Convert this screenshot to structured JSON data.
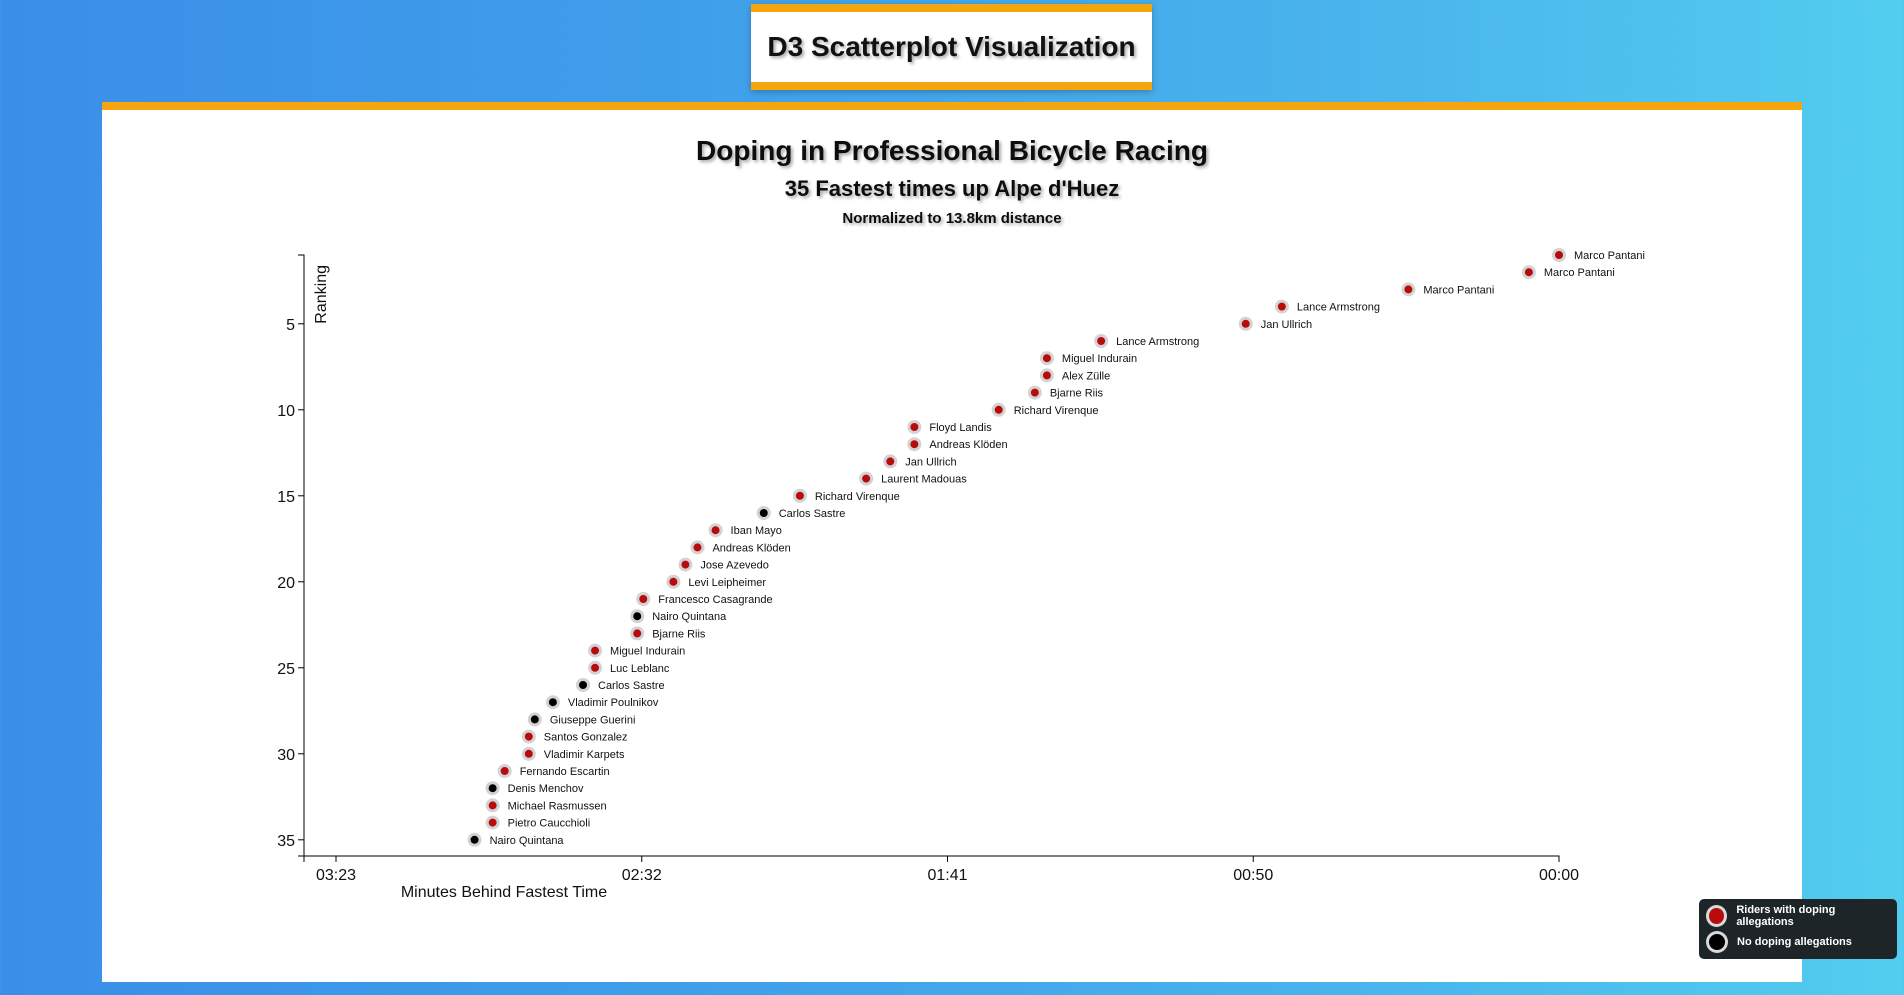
{
  "page": {
    "heading": "D3 Scatterplot Visualization"
  },
  "colors": {
    "doping": "#b80c0c",
    "clean": "#000000",
    "accent": "#f5a50e",
    "dot_ring": "#d3d3d3"
  },
  "chart_data": {
    "type": "scatter",
    "title": "Doping in Professional Bicycle Racing",
    "subtitle": "35 Fastest times up Alpe d'Huez",
    "subsubtitle": "Normalized to 13.8km distance",
    "xlabel": "Minutes Behind Fastest Time",
    "ylabel": "Ranking",
    "xlim_seconds_behind": [
      203,
      0
    ],
    "ylim": [
      1,
      36
    ],
    "x_ticks": [
      "03:23",
      "02:32",
      "01:41",
      "00:50",
      "00:00"
    ],
    "y_ticks": [
      5,
      10,
      15,
      20,
      25,
      30,
      35
    ],
    "legend": [
      {
        "label": "Riders with doping allegations",
        "color": "#b80c0c"
      },
      {
        "label": "No doping allegations",
        "color": "#000000"
      }
    ],
    "points": [
      {
        "rank": 1,
        "seconds_behind": 0,
        "name": "Marco Pantani",
        "doping": true
      },
      {
        "rank": 2,
        "seconds_behind": 5,
        "name": "Marco Pantani",
        "doping": true
      },
      {
        "rank": 3,
        "seconds_behind": 25,
        "name": "Marco Pantani",
        "doping": true
      },
      {
        "rank": 4,
        "seconds_behind": 46,
        "name": "Lance Armstrong",
        "doping": true
      },
      {
        "rank": 5,
        "seconds_behind": 52,
        "name": "Jan Ullrich",
        "doping": true
      },
      {
        "rank": 6,
        "seconds_behind": 76,
        "name": "Lance Armstrong",
        "doping": true
      },
      {
        "rank": 7,
        "seconds_behind": 85,
        "name": "Miguel Indurain",
        "doping": true
      },
      {
        "rank": 8,
        "seconds_behind": 85,
        "name": "Alex Zülle",
        "doping": true
      },
      {
        "rank": 9,
        "seconds_behind": 87,
        "name": "Bjarne Riis",
        "doping": true
      },
      {
        "rank": 10,
        "seconds_behind": 93,
        "name": "Richard Virenque",
        "doping": true
      },
      {
        "rank": 11,
        "seconds_behind": 107,
        "name": "Floyd Landis",
        "doping": true
      },
      {
        "rank": 12,
        "seconds_behind": 107,
        "name": "Andreas Klöden",
        "doping": true
      },
      {
        "rank": 13,
        "seconds_behind": 111,
        "name": "Jan Ullrich",
        "doping": true
      },
      {
        "rank": 14,
        "seconds_behind": 115,
        "name": "Laurent Madouas",
        "doping": true
      },
      {
        "rank": 15,
        "seconds_behind": 126,
        "name": "Richard Virenque",
        "doping": true
      },
      {
        "rank": 16,
        "seconds_behind": 132,
        "name": "Carlos Sastre",
        "doping": false
      },
      {
        "rank": 17,
        "seconds_behind": 140,
        "name": "Iban Mayo",
        "doping": true
      },
      {
        "rank": 18,
        "seconds_behind": 143,
        "name": "Andreas Klöden",
        "doping": true
      },
      {
        "rank": 19,
        "seconds_behind": 145,
        "name": "Jose Azevedo",
        "doping": true
      },
      {
        "rank": 20,
        "seconds_behind": 147,
        "name": "Levi Leipheimer",
        "doping": true
      },
      {
        "rank": 21,
        "seconds_behind": 152,
        "name": "Francesco Casagrande",
        "doping": true
      },
      {
        "rank": 22,
        "seconds_behind": 153,
        "name": "Nairo Quintana",
        "doping": false
      },
      {
        "rank": 23,
        "seconds_behind": 153,
        "name": "Bjarne Riis",
        "doping": true
      },
      {
        "rank": 24,
        "seconds_behind": 160,
        "name": "Miguel Indurain",
        "doping": true
      },
      {
        "rank": 25,
        "seconds_behind": 160,
        "name": "Luc Leblanc",
        "doping": true
      },
      {
        "rank": 26,
        "seconds_behind": 162,
        "name": "Carlos Sastre",
        "doping": false
      },
      {
        "rank": 27,
        "seconds_behind": 167,
        "name": "Vladimir Poulnikov",
        "doping": false
      },
      {
        "rank": 28,
        "seconds_behind": 170,
        "name": "Giuseppe Guerini",
        "doping": false
      },
      {
        "rank": 29,
        "seconds_behind": 171,
        "name": "Santos Gonzalez",
        "doping": true
      },
      {
        "rank": 30,
        "seconds_behind": 171,
        "name": "Vladimir Karpets",
        "doping": true
      },
      {
        "rank": 31,
        "seconds_behind": 175,
        "name": "Fernando Escartin",
        "doping": true
      },
      {
        "rank": 32,
        "seconds_behind": 177,
        "name": "Denis Menchov",
        "doping": false
      },
      {
        "rank": 33,
        "seconds_behind": 177,
        "name": "Michael Rasmussen",
        "doping": true
      },
      {
        "rank": 34,
        "seconds_behind": 177,
        "name": "Pietro Caucchioli",
        "doping": true
      },
      {
        "rank": 35,
        "seconds_behind": 180,
        "name": "Nairo Quintana",
        "doping": false
      }
    ]
  }
}
